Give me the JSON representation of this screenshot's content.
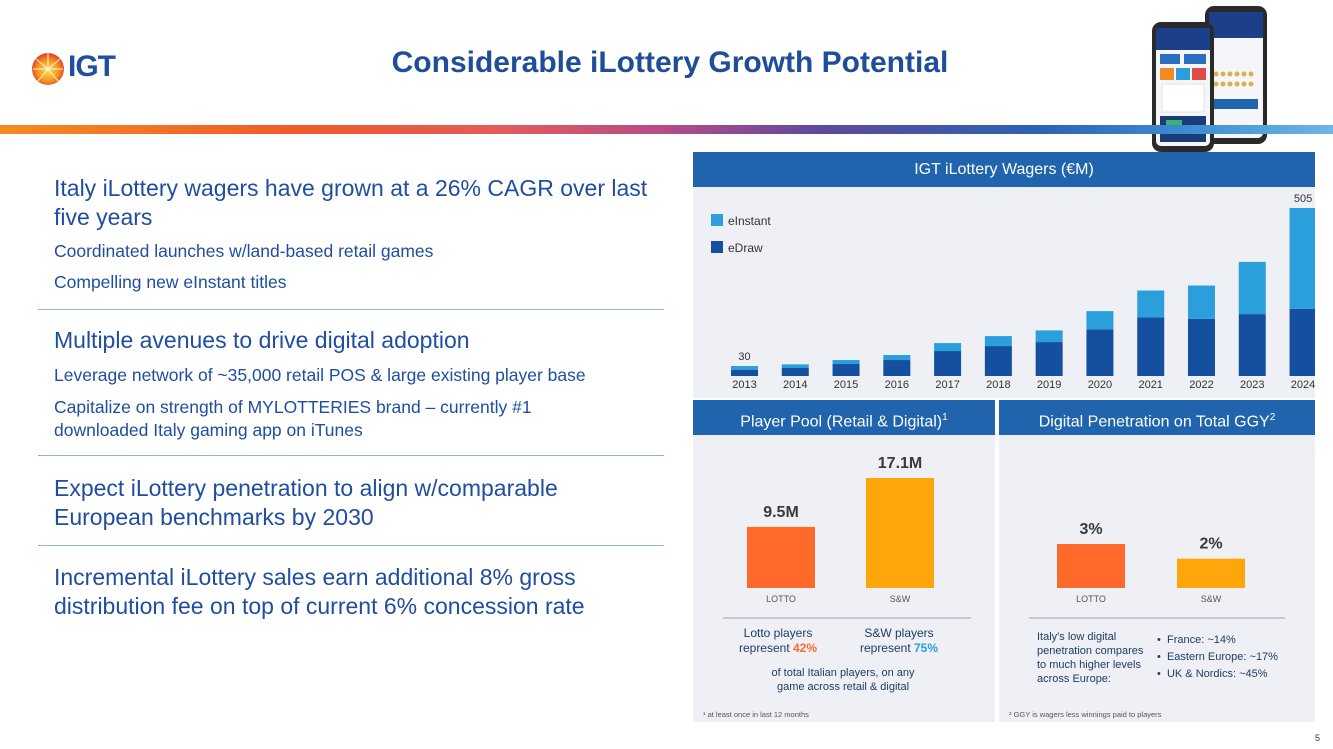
{
  "header": {
    "logo_text": "IGT",
    "title": "Considerable iLottery Growth Potential"
  },
  "left": {
    "s1": {
      "heading": "Italy iLottery wagers have grown at a 26% CAGR over last five years",
      "bullets": [
        "Coordinated launches w/land-based retail games",
        "Compelling new eInstant titles"
      ]
    },
    "s2": {
      "heading": "Multiple avenues to drive digital adoption",
      "bullets": [
        "Leverage network of ~35,000 retail POS & large existing player base",
        "Capitalize on strength of MYLOTTERIES brand – currently #1 downloaded Italy gaming app on iTunes"
      ]
    },
    "s3": {
      "heading": "Expect iLottery penetration to align w/comparable European benchmarks by 2030"
    },
    "s4": {
      "heading": "Incremental iLottery sales earn additional 8% gross distribution fee on top of current 6% concession rate"
    }
  },
  "colors": {
    "edraw": "#1550a0",
    "einstant": "#2b9fdb",
    "lotto": "#ff6a2a",
    "sw": "#ffa60a",
    "header": "#1f64ac"
  },
  "chart_data": [
    {
      "type": "bar",
      "stacked": true,
      "title": "IGT iLottery Wagers (€M)",
      "categories": [
        "2013",
        "2014",
        "2015",
        "2016",
        "2017",
        "2018",
        "2019",
        "2020",
        "2021",
        "2022",
        "2023",
        "2024"
      ],
      "series": [
        {
          "name": "eDraw",
          "values": [
            19,
            24,
            36,
            48,
            75,
            90,
            102,
            140,
            176,
            172,
            186,
            202
          ]
        },
        {
          "name": "eInstant",
          "values": [
            11,
            11,
            12,
            15,
            24,
            30,
            35,
            55,
            81,
            100,
            157,
            303
          ]
        }
      ],
      "data_labels": {
        "2013": "30",
        "2024": "505"
      },
      "legend": [
        "eInstant",
        "eDraw"
      ],
      "ylim": [
        0,
        505
      ]
    },
    {
      "type": "bar",
      "title": "Player Pool (Retail & Digital)",
      "title_sup": "1",
      "categories": [
        "LOTTO",
        "S&W"
      ],
      "values": [
        9.5,
        17.1
      ],
      "value_labels": [
        "9.5M",
        "17.1M"
      ],
      "ylim": [
        0,
        17.1
      ]
    },
    {
      "type": "bar",
      "title": "Digital Penetration on Total GGY",
      "title_sup": "2",
      "categories": [
        "LOTTO",
        "S&W"
      ],
      "values": [
        3,
        2
      ],
      "value_labels": [
        "3%",
        "2%"
      ],
      "ylim": [
        0,
        3
      ]
    }
  ],
  "pool": {
    "lotto_l1": "Lotto players",
    "lotto_l2_pre": "represent ",
    "lotto_pct": "42%",
    "sw_l1": "S&W players",
    "sw_l2_pre": "represent ",
    "sw_pct": "75%",
    "caption": "of total Italian players, on any game across retail & digital",
    "footnote": "¹ at least once in last 12 months"
  },
  "penetration": {
    "caption": "Italy's low digital penetration compares to much higher levels across Europe:",
    "bullets": [
      "France: ~14%",
      "Eastern Europe: ~17%",
      "UK & Nordics: ~45%"
    ],
    "footnote": "² GGY is wagers less winnings paid to players"
  },
  "page_number": "5"
}
